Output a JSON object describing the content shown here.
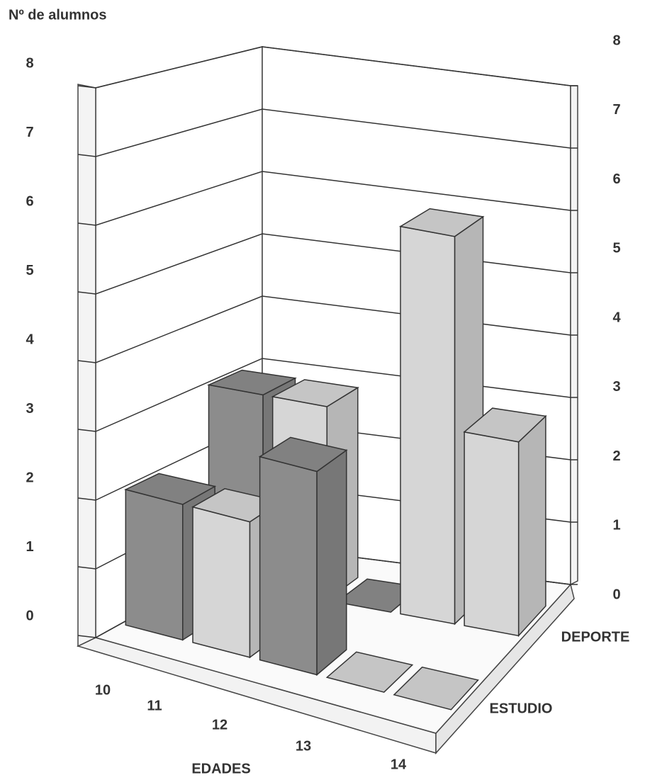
{
  "chart_data": {
    "type": "bar3d",
    "y_label": "Nº de alumnos",
    "x_label": "EDADES",
    "categories": [
      "10",
      "11",
      "12",
      "13",
      "14"
    ],
    "colors": [
      "#8c8c8c",
      "#d6d6d6",
      "#8c8c8c",
      "#d6d6d6",
      "#d6d6d6"
    ],
    "series": [
      {
        "name": "ESTUDIO",
        "values": [
          2,
          2,
          3,
          0,
          0
        ]
      },
      {
        "name": "DEPORTE",
        "values": [
          3,
          3,
          0,
          6,
          3
        ]
      }
    ],
    "ylim": [
      0,
      8
    ],
    "yticks": [
      0,
      1,
      2,
      3,
      4,
      5,
      6,
      7,
      8
    ],
    "grid": true
  }
}
